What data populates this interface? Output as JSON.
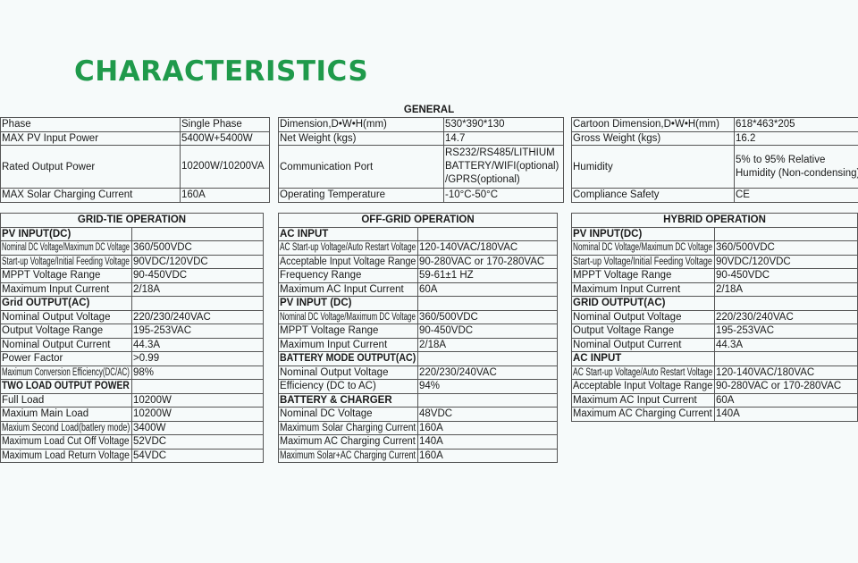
{
  "title": "CHARACTERISTICS",
  "general": {
    "heading": "GENERAL",
    "tables": [
      [
        [
          "Phase",
          "Single Phase"
        ],
        [
          "MAX PV Input Power",
          "5400W+5400W"
        ],
        [
          "Rated Output Power",
          "10200W/10200VA"
        ],
        [
          "MAX Solar Charging Current",
          "160A"
        ]
      ],
      [
        [
          "Dimension,D•W•H(mm)",
          "530*390*130"
        ],
        [
          "Net Weight (kgs)",
          "14.7"
        ],
        [
          "Communication Port",
          "RS232/RS485/LITHIUM BATTERY/WIFI(optional) /GPRS(optional)"
        ],
        [
          "Operating Temperature",
          "-10°C-50°C"
        ]
      ],
      [
        [
          "Cartoon Dimension,D•W•H(mm)",
          "618*463*205"
        ],
        [
          "Gross Weight (kgs)",
          "16.2"
        ],
        [
          "Humidity",
          "5% to 95% Relative Humidity (Non-condensing)"
        ],
        [
          "Compliance Safety",
          "CE"
        ]
      ]
    ]
  },
  "operations": [
    {
      "heading": "GRID-TIE OPERATION",
      "rows": [
        {
          "section": "PV INPUT(DC)"
        },
        [
          "Nominal DC Voltage/Maximum DC Voltage",
          "360/500VDC"
        ],
        [
          "Start-up Voltage/Initial Feeding Voltage",
          "90VDC/120VDC"
        ],
        [
          "MPPT Voltage Range",
          "90-450VDC"
        ],
        [
          "Maximum Input Current",
          "2/18A"
        ],
        {
          "section": "Grid OUTPUT(AC)"
        },
        [
          "Nominal Output Voltage",
          "220/230/240VAC"
        ],
        [
          "Output Voltage Range",
          "195-253VAC"
        ],
        [
          "Nominal Output Current",
          "44.3A"
        ],
        [
          "Power Factor",
          ">0.99"
        ],
        [
          "Maximum Conversion Efficiency(DC/AC)",
          "98%"
        ],
        {
          "section": "TWO LOAD OUTPUT POWER"
        },
        [
          "Full Load",
          "10200W"
        ],
        [
          "Maxium Main Load",
          "10200W"
        ],
        [
          "Maxium Second Load(batlery mode)",
          "3400W"
        ],
        [
          "Maximum Load Cut Off Voltage",
          "52VDC"
        ],
        [
          "Maximum Load Return Voltage",
          "54VDC"
        ]
      ]
    },
    {
      "heading": "OFF-GRID OPERATION",
      "rows": [
        {
          "section": "AC INPUT"
        },
        [
          "AC Start-up Voltage/Auto Restart Voltage",
          "120-140VAC/180VAC"
        ],
        [
          "Acceptable Input Voltage Range",
          "90-280VAC or 170-280VAC"
        ],
        [
          "Frequency Range",
          "59-61±1 HZ"
        ],
        [
          "Maximum AC Input Current",
          "60A"
        ],
        {
          "section": "PV INPUT (DC)"
        },
        [
          "Nominal DC Voltage/Maximum DC Voltage",
          "360/500VDC"
        ],
        [
          "MPPT Voltage Range",
          "90-450VDC"
        ],
        [
          "Maximum Input Current",
          "2/18A"
        ],
        {
          "section": "BATTERY MODE OUTPUT(AC)"
        },
        [
          "Nominal Output Voltage",
          "220/230/240VAC"
        ],
        [
          "Efficiency (DC to AC)",
          "94%"
        ],
        {
          "section": "BATTERY & CHARGER"
        },
        [
          "Nominal DC Voltage",
          "48VDC"
        ],
        [
          "Maximum Solar Charging Current",
          "160A"
        ],
        [
          "Maximum AC Charging Current",
          "140A"
        ],
        [
          "Maximum Solar+AC Charging Current",
          "160A"
        ]
      ]
    },
    {
      "heading": "HYBRID OPERATION",
      "rows": [
        {
          "section": "PV INPUT(DC)"
        },
        [
          "Nominal DC Voltage/Maximum DC Voltage",
          "360/500VDC"
        ],
        [
          "Start-up Voltage/Initial Feeding Voltage",
          "90VDC/120VDC"
        ],
        [
          "MPPT Voltage Range",
          "90-450VDC"
        ],
        [
          "Maximum Input Current",
          "2/18A"
        ],
        {
          "section": "GRID OUTPUT(AC)"
        },
        [
          "Nominal Output Voltage",
          "220/230/240VAC"
        ],
        [
          "Output Voltage Range",
          "195-253VAC"
        ],
        [
          "Nominal Output Current",
          "44.3A"
        ],
        {
          "section": "AC INPUT"
        },
        [
          "AC Start-up Voltage/Auto Restart Voltage",
          "120-140VAC/180VAC"
        ],
        [
          "Acceptable Input Voltage Range",
          "90-280VAC or 170-280VAC"
        ],
        [
          "Maximum AC Input Current",
          "60A"
        ],
        [
          "Maximum AC Charging Current",
          "140A"
        ]
      ]
    }
  ]
}
